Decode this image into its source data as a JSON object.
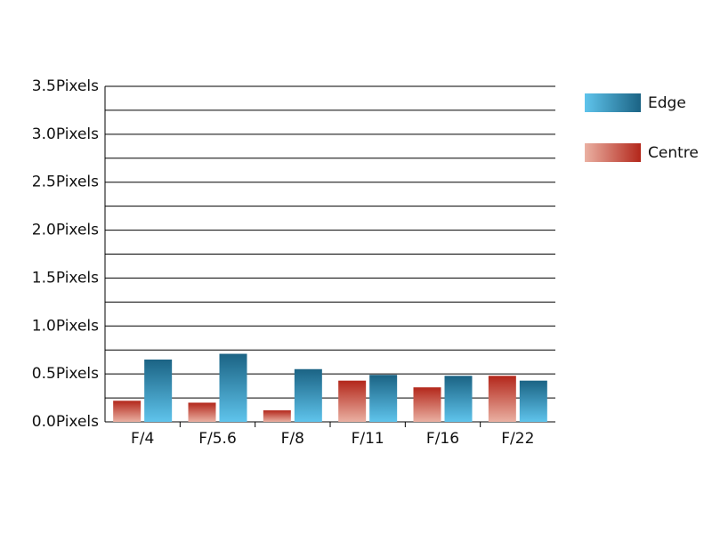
{
  "chart_data": {
    "type": "bar",
    "categories": [
      "F/4",
      "F/5.6",
      "F/8",
      "F/11",
      "F/16",
      "F/22"
    ],
    "series": [
      {
        "name": "Edge",
        "color": "#1b6384",
        "values": [
          0.65,
          0.71,
          0.55,
          0.49,
          0.48,
          0.43
        ]
      },
      {
        "name": "Centre",
        "color": "#b3271b",
        "values": [
          0.22,
          0.2,
          0.12,
          0.43,
          0.36,
          0.48
        ]
      }
    ],
    "ylim": [
      0,
      3.5
    ],
    "yticks": [
      {
        "value": 0,
        "label": "0.0Pixels"
      },
      {
        "value": 0.5,
        "label": "0.5Pixels"
      },
      {
        "value": 1,
        "label": "1.0Pixels"
      },
      {
        "value": 1.5,
        "label": "1.5Pixels"
      },
      {
        "value": 2,
        "label": "2.0Pixels"
      },
      {
        "value": 2.5,
        "label": "2.5Pixels"
      },
      {
        "value": 3,
        "label": "3.0Pixels"
      },
      {
        "value": 3.5,
        "label": "3.5Pixels"
      }
    ],
    "minor_yticks": [
      0.25,
      0.75,
      1.25,
      1.75,
      2.25,
      2.75,
      3.25
    ],
    "grid": true,
    "legend": "right"
  }
}
